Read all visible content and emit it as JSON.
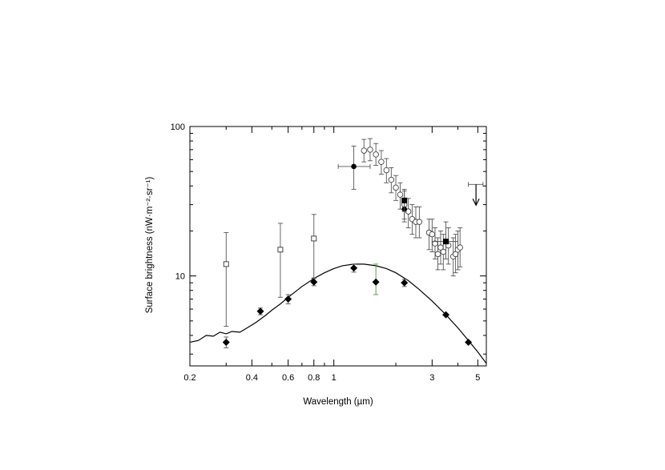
{
  "chart_data": {
    "type": "scatter",
    "title": "",
    "xlabel": "Wavelength (µm)",
    "ylabel": "Surface brightness (nW·m⁻²·sr⁻¹)",
    "x_scale": "log",
    "y_scale": "log",
    "xlim": [
      0.2,
      5.5
    ],
    "ylim": [
      2.5,
      100
    ],
    "x_ticks": [
      {
        "value": 0.2,
        "label": "0.2"
      },
      {
        "value": 0.4,
        "label": "0.4"
      },
      {
        "value": 0.6,
        "label": "0.6"
      },
      {
        "value": 0.8,
        "label": "0.8"
      },
      {
        "value": 1,
        "label": "1"
      },
      {
        "value": 3,
        "label": "3"
      },
      {
        "value": 5,
        "label": "5"
      }
    ],
    "y_ticks": [
      {
        "value": 10,
        "label": "10"
      },
      {
        "value": 100,
        "label": "100"
      }
    ],
    "grid": false,
    "legend": "none",
    "series": [
      {
        "marker": "line",
        "points": [
          {
            "x": 0.2,
            "y": 3.6
          },
          {
            "x": 0.22,
            "y": 3.7
          },
          {
            "x": 0.24,
            "y": 4.0
          },
          {
            "x": 0.26,
            "y": 3.95
          },
          {
            "x": 0.28,
            "y": 4.2
          },
          {
            "x": 0.3,
            "y": 4.1
          },
          {
            "x": 0.32,
            "y": 4.25
          },
          {
            "x": 0.35,
            "y": 4.2
          },
          {
            "x": 0.38,
            "y": 4.5
          },
          {
            "x": 0.42,
            "y": 4.9
          },
          {
            "x": 0.47,
            "y": 5.5
          },
          {
            "x": 0.5,
            "y": 5.9
          },
          {
            "x": 0.55,
            "y": 6.5
          },
          {
            "x": 0.6,
            "y": 7.2
          },
          {
            "x": 0.7,
            "y": 8.5
          },
          {
            "x": 0.8,
            "y": 9.6
          },
          {
            "x": 0.9,
            "y": 10.5
          },
          {
            "x": 1.0,
            "y": 11.2
          },
          {
            "x": 1.1,
            "y": 11.7
          },
          {
            "x": 1.25,
            "y": 12.0
          },
          {
            "x": 1.4,
            "y": 12.0
          },
          {
            "x": 1.6,
            "y": 11.7
          },
          {
            "x": 1.8,
            "y": 11.2
          },
          {
            "x": 2.0,
            "y": 10.5
          },
          {
            "x": 2.3,
            "y": 9.3
          },
          {
            "x": 2.6,
            "y": 8.1
          },
          {
            "x": 3.0,
            "y": 6.8
          },
          {
            "x": 3.5,
            "y": 5.5
          },
          {
            "x": 4.0,
            "y": 4.5
          },
          {
            "x": 4.5,
            "y": 3.7
          },
          {
            "x": 5.0,
            "y": 3.1
          },
          {
            "x": 5.5,
            "y": 2.6
          }
        ]
      },
      {
        "marker": "filled-diamond",
        "points": [
          {
            "x": 0.3,
            "y": 3.6,
            "err_lo": 3.3,
            "err_hi": 3.9
          },
          {
            "x": 0.44,
            "y": 5.8,
            "err_lo": 5.5,
            "err_hi": 6.1
          },
          {
            "x": 0.6,
            "y": 7.0,
            "err_lo": 6.5,
            "err_hi": 7.5
          },
          {
            "x": 0.8,
            "y": 9.1,
            "err_lo": 8.6,
            "err_hi": 9.6
          },
          {
            "x": 1.25,
            "y": 11.3,
            "err_lo": 10.6,
            "err_hi": 12.0
          },
          {
            "x": 1.6,
            "y": 9.1,
            "err_lo": 7.5,
            "err_hi": 12.0
          },
          {
            "x": 2.2,
            "y": 9.0,
            "err_lo": 8.5,
            "err_hi": 9.5
          },
          {
            "x": 3.5,
            "y": 5.5
          },
          {
            "x": 4.5,
            "y": 3.6
          }
        ]
      },
      {
        "marker": "open-square",
        "points": [
          {
            "x": 0.3,
            "y": 12.0,
            "err_lo": 4.6,
            "err_hi": 19.5
          },
          {
            "x": 0.55,
            "y": 15.0,
            "err_lo": 7.2,
            "err_hi": 22.5
          },
          {
            "x": 0.8,
            "y": 17.8,
            "err_lo": 9.7,
            "err_hi": 25.8
          }
        ]
      },
      {
        "marker": "open-circle",
        "points": [
          {
            "x": 1.4,
            "y": 69,
            "err_lo": 58,
            "err_hi": 82
          },
          {
            "x": 1.5,
            "y": 70,
            "err_lo": 59,
            "err_hi": 83
          },
          {
            "x": 1.6,
            "y": 65,
            "err_lo": 55,
            "err_hi": 77
          },
          {
            "x": 1.7,
            "y": 58,
            "err_lo": 48,
            "err_hi": 69
          },
          {
            "x": 1.8,
            "y": 51,
            "err_lo": 42,
            "err_hi": 61
          },
          {
            "x": 1.9,
            "y": 44,
            "err_lo": 36,
            "err_hi": 53
          },
          {
            "x": 2.0,
            "y": 39,
            "err_lo": 32,
            "err_hi": 47
          },
          {
            "x": 2.1,
            "y": 35,
            "err_lo": 28,
            "err_hi": 42
          },
          {
            "x": 2.2,
            "y": 30,
            "err_lo": 24,
            "err_hi": 37
          },
          {
            "x": 2.3,
            "y": 27,
            "err_lo": 21,
            "err_hi": 33
          },
          {
            "x": 2.4,
            "y": 24,
            "err_lo": 19,
            "err_hi": 30
          },
          {
            "x": 2.5,
            "y": 23,
            "err_lo": 18,
            "err_hi": 29
          },
          {
            "x": 2.6,
            "y": 23,
            "err_lo": 18,
            "err_hi": 29
          },
          {
            "x": 2.9,
            "y": 19.5,
            "err_lo": 15,
            "err_hi": 24
          },
          {
            "x": 3.0,
            "y": 19.0,
            "err_lo": 14.5,
            "err_hi": 24
          },
          {
            "x": 3.1,
            "y": 16.5,
            "err_lo": 13,
            "err_hi": 21
          },
          {
            "x": 3.2,
            "y": 14.0,
            "err_lo": 11,
            "err_hi": 18
          },
          {
            "x": 3.3,
            "y": 15.5,
            "err_lo": 12,
            "err_hi": 20
          },
          {
            "x": 3.4,
            "y": 14.5,
            "err_lo": 11,
            "err_hi": 19
          },
          {
            "x": 3.6,
            "y": 16.0,
            "err_lo": 12,
            "err_hi": 21
          },
          {
            "x": 3.8,
            "y": 13.5,
            "err_lo": 10,
            "err_hi": 18
          },
          {
            "x": 3.9,
            "y": 14.0,
            "err_lo": 10.5,
            "err_hi": 19
          },
          {
            "x": 4.0,
            "y": 15.0,
            "err_lo": 11,
            "err_hi": 20
          },
          {
            "x": 4.1,
            "y": 15.5,
            "err_lo": 11.5,
            "err_hi": 21
          }
        ]
      },
      {
        "marker": "filled-circle",
        "points": [
          {
            "x": 1.25,
            "y": 54,
            "err_lo": 38,
            "err_hi": 74,
            "xerr_lo": 1.05,
            "xerr_hi": 1.5
          },
          {
            "x": 2.2,
            "y": 28,
            "err_lo": 23,
            "err_hi": 33
          }
        ]
      },
      {
        "marker": "filled-square",
        "points": [
          {
            "x": 2.2,
            "y": 32,
            "err_lo": 27,
            "err_hi": 38
          },
          {
            "x": 3.5,
            "y": 17,
            "err_lo": 13,
            "err_hi": 23,
            "xerr_lo": 3.0,
            "xerr_hi": 4.0
          }
        ]
      },
      {
        "marker": "upper-limit-arrow",
        "points": [
          {
            "x": 4.9,
            "y": 41,
            "xerr_lo": 4.5,
            "xerr_hi": 5.3
          }
        ]
      }
    ]
  }
}
